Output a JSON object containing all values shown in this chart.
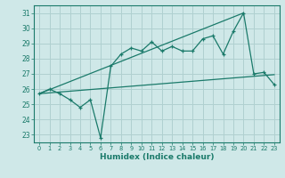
{
  "title": "",
  "xlabel": "Humidex (Indice chaleur)",
  "x_values": [
    0,
    1,
    2,
    3,
    4,
    5,
    6,
    7,
    8,
    9,
    10,
    11,
    12,
    13,
    14,
    15,
    16,
    17,
    18,
    19,
    20,
    21,
    22,
    23
  ],
  "main_line": [
    25.7,
    26.0,
    25.7,
    25.3,
    24.8,
    25.3,
    22.8,
    27.5,
    28.3,
    28.7,
    28.5,
    29.1,
    28.5,
    28.8,
    28.5,
    28.5,
    29.3,
    29.5,
    28.3,
    29.8,
    31.0,
    27.0,
    27.1,
    26.3
  ],
  "line_color": "#1a7a6a",
  "bg_color": "#cfe8e8",
  "grid_color": "#b0d0d0",
  "ylim_min": 22.5,
  "ylim_max": 31.5,
  "xlim_min": -0.5,
  "xlim_max": 23.5,
  "yticks": [
    23,
    24,
    25,
    26,
    27,
    28,
    29,
    30,
    31
  ],
  "xtick_labels": [
    "0",
    "1",
    "2",
    "3",
    "4",
    "5",
    "6",
    "7",
    "8",
    "9",
    "10",
    "11",
    "12",
    "13",
    "14",
    "15",
    "16",
    "17",
    "18",
    "19",
    "20",
    "21",
    "22",
    "23"
  ]
}
